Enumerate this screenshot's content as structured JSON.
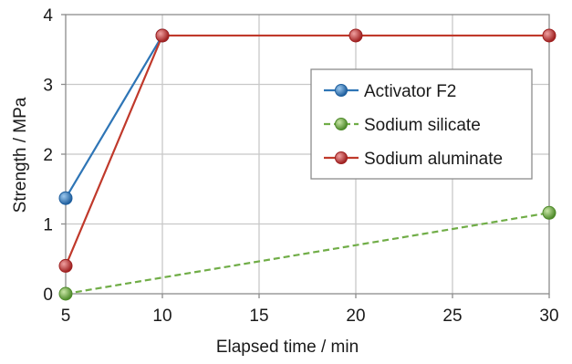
{
  "chart_data": {
    "type": "line",
    "title": "",
    "xlabel": "Elapsed time / min",
    "ylabel": "Strength / MPa",
    "xlim": [
      5,
      30
    ],
    "ylim": [
      0,
      4
    ],
    "xticks": [
      5,
      10,
      15,
      20,
      25,
      30
    ],
    "yticks": [
      0,
      1,
      2,
      3,
      4
    ],
    "grid": true,
    "legend_position": "right-center",
    "series": [
      {
        "name": "Activator F2",
        "color": "#2e75b6",
        "line_style": "solid",
        "x": [
          5,
          10
        ],
        "y": [
          1.37,
          3.7
        ]
      },
      {
        "name": "Sodium silicate",
        "color": "#70ad47",
        "line_style": "dashed",
        "x": [
          5,
          30
        ],
        "y": [
          0.0,
          1.16
        ]
      },
      {
        "name": "Sodium aluminate",
        "color": "#c0392b",
        "line_style": "solid",
        "x": [
          5,
          10,
          20,
          30
        ],
        "y": [
          0.4,
          3.7,
          3.7,
          3.7
        ]
      }
    ]
  }
}
